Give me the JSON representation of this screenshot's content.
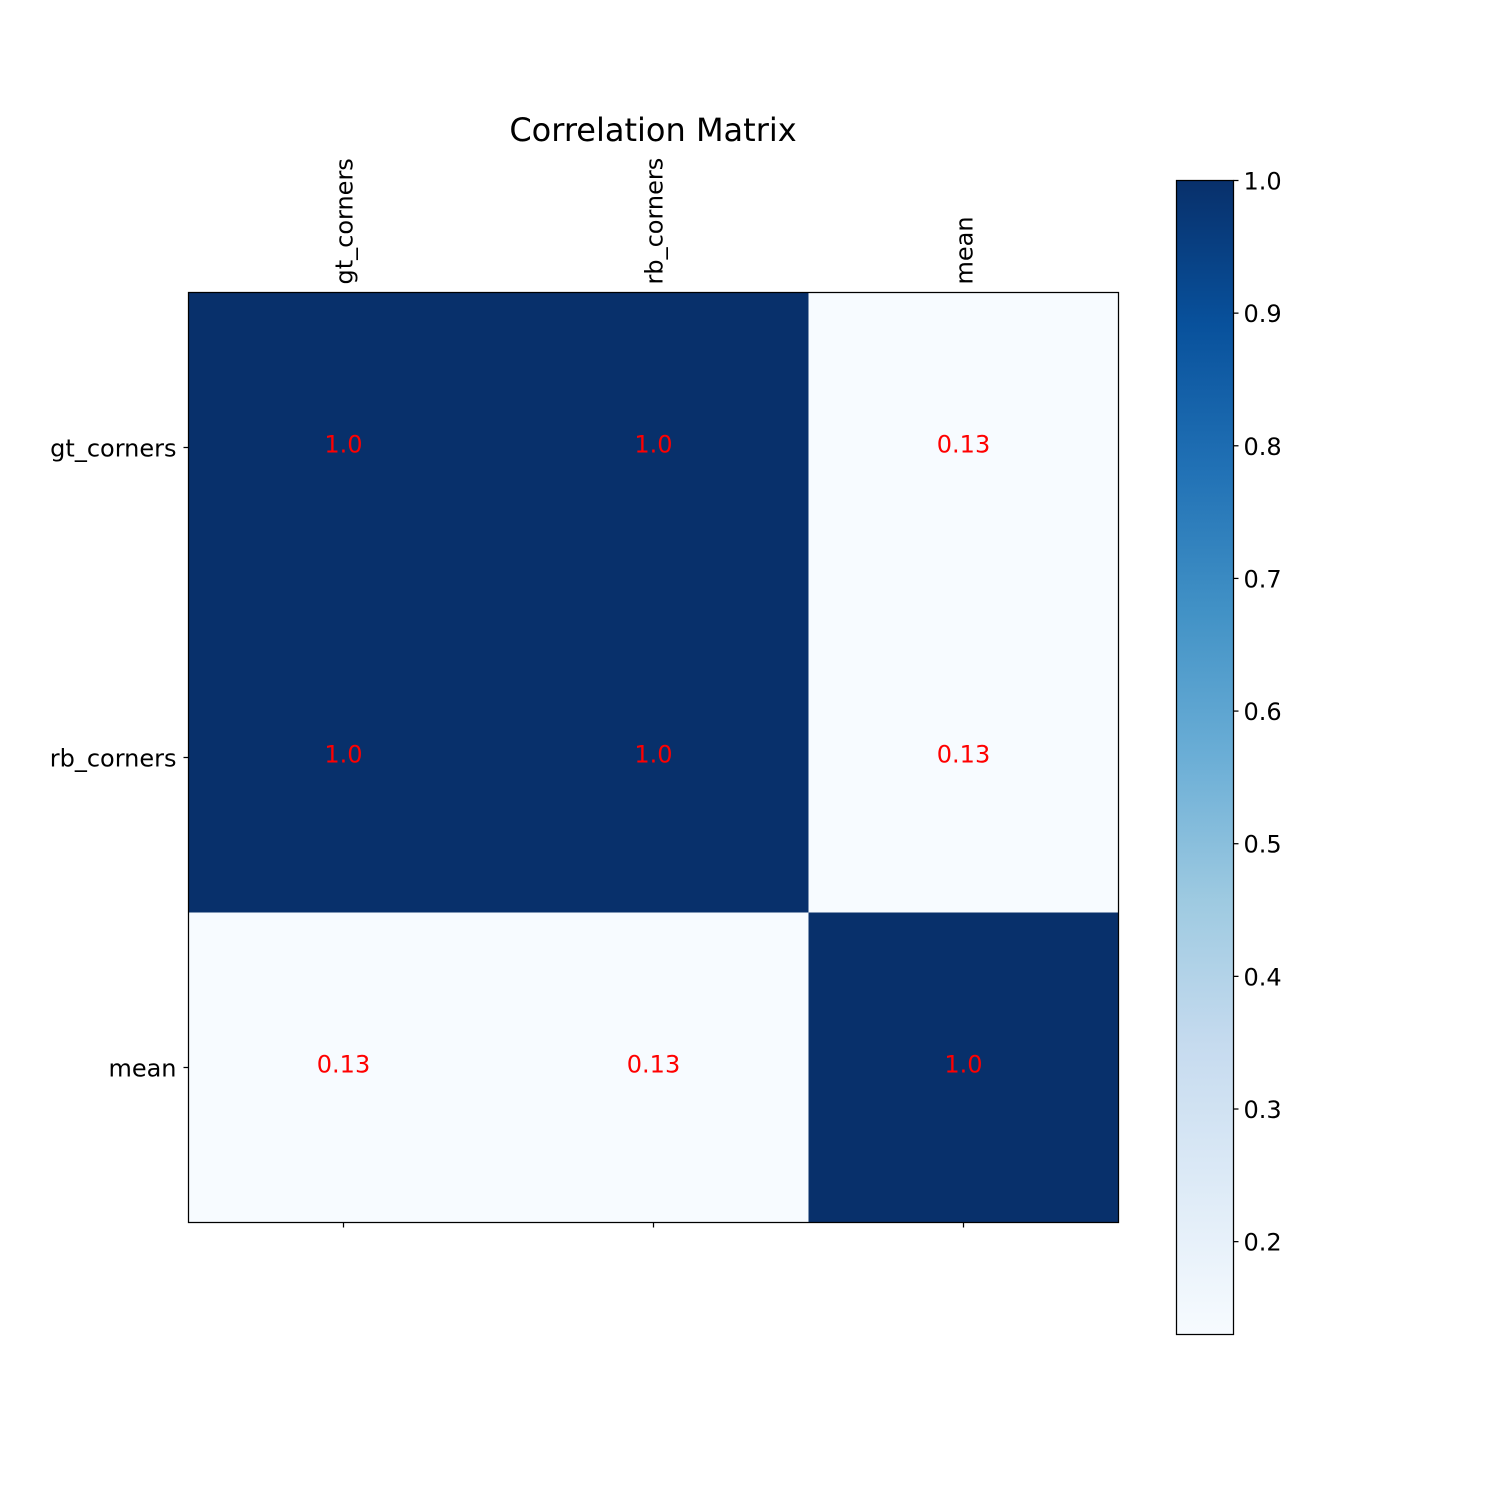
{
  "chart_data": {
    "type": "heatmap",
    "title": "Correlation Matrix",
    "row_labels": [
      "gt_corners",
      "rb_corners",
      "mean"
    ],
    "col_labels": [
      "gt_corners",
      "rb_corners",
      "mean"
    ],
    "values": [
      [
        1.0,
        1.0,
        0.13
      ],
      [
        1.0,
        1.0,
        0.13
      ],
      [
        0.13,
        0.13,
        1.0
      ]
    ],
    "cell_labels": [
      [
        "1.0",
        "1.0",
        "0.13"
      ],
      [
        "1.0",
        "1.0",
        "0.13"
      ],
      [
        "0.13",
        "0.13",
        "1.0"
      ]
    ],
    "colormap": "Blues",
    "colorbar": {
      "min": 0.13,
      "max": 1.0,
      "ticks": [
        0.2,
        0.3,
        0.4,
        0.5,
        0.6,
        0.7,
        0.8,
        0.9,
        1.0
      ],
      "tick_labels": [
        "0.2",
        "0.3",
        "0.4",
        "0.5",
        "0.6",
        "0.7",
        "0.8",
        "0.9",
        "1.0"
      ]
    },
    "annotation_color": "#ff0000",
    "x_tick_position": "top",
    "grid": false
  }
}
